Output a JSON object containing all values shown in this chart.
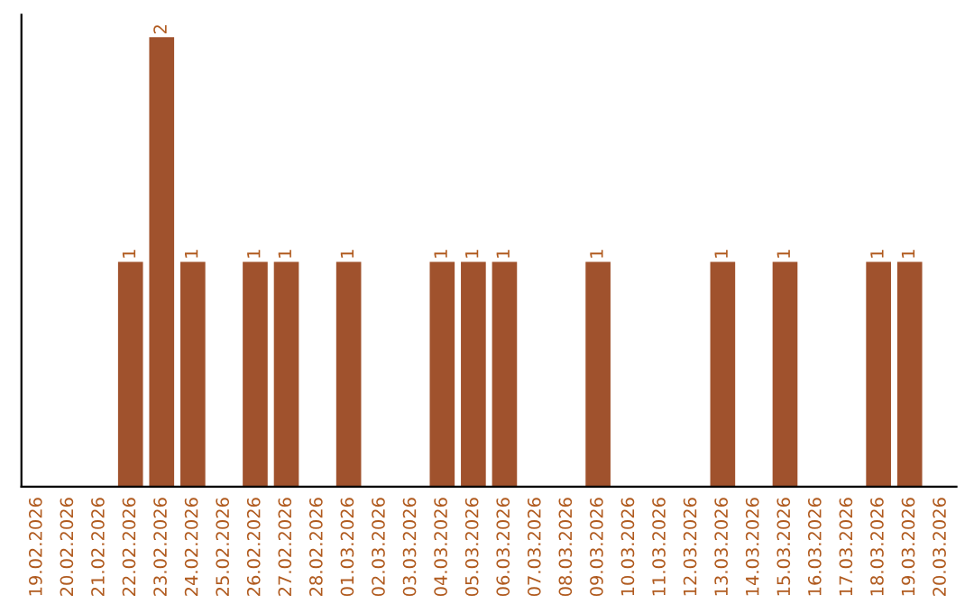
{
  "chart_data": {
    "type": "bar",
    "categories": [
      "19.02.2026",
      "20.02.2026",
      "21.02.2026",
      "22.02.2026",
      "23.02.2026",
      "24.02.2026",
      "25.02.2026",
      "26.02.2026",
      "27.02.2026",
      "28.02.2026",
      "01.03.2026",
      "02.03.2026",
      "03.03.2026",
      "04.03.2026",
      "05.03.2026",
      "06.03.2026",
      "07.03.2026",
      "08.03.2026",
      "09.03.2026",
      "10.03.2026",
      "11.03.2026",
      "12.03.2026",
      "13.03.2026",
      "14.03.2026",
      "15.03.2026",
      "16.03.2026",
      "17.03.2026",
      "18.03.2026",
      "19.03.2026",
      "20.03.2026"
    ],
    "values": [
      0,
      0,
      0,
      1,
      2,
      1,
      0,
      1,
      1,
      0,
      1,
      0,
      0,
      1,
      1,
      1,
      0,
      0,
      1,
      0,
      0,
      0,
      1,
      0,
      1,
      0,
      0,
      1,
      1,
      0
    ],
    "value_labels": [
      null,
      null,
      null,
      "1",
      "2",
      "1",
      null,
      "1",
      "1",
      null,
      "1",
      null,
      null,
      "1",
      "1",
      "1",
      null,
      null,
      "1",
      null,
      null,
      null,
      "1",
      null,
      "1",
      null,
      null,
      "1",
      "1",
      null
    ],
    "color": "#a0522d",
    "ylim": [
      0,
      2.1
    ],
    "tick_labels": "x",
    "grid": false
  }
}
